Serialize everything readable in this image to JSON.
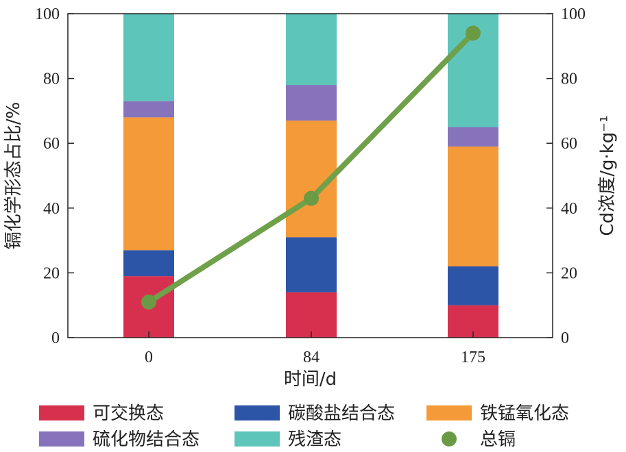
{
  "chart_data": {
    "type": "bar",
    "stacked": true,
    "categories": [
      "0",
      "84",
      "175"
    ],
    "xlabel": "时间/d",
    "ylabel_left": "镉化学形态占比/%",
    "ylabel_right": "Cd浓度/g·kg⁻¹",
    "ylim_left": [
      0,
      100
    ],
    "ylim_right": [
      0,
      100
    ],
    "yticks_left": [
      "0",
      "20",
      "40",
      "60",
      "80",
      "100"
    ],
    "yticks_right": [
      "0",
      "20",
      "40",
      "60",
      "80",
      "100"
    ],
    "series": [
      {
        "name": "可交换态",
        "color": "#d6304e",
        "values": [
          19,
          14,
          10
        ]
      },
      {
        "name": "碳酸盐结合态",
        "color": "#2c55a8",
        "values": [
          8,
          17,
          12
        ]
      },
      {
        "name": "铁锰氧化态",
        "color": "#f49a38",
        "values": [
          41,
          36,
          37
        ]
      },
      {
        "name": "硫化物结合态",
        "color": "#8773bb",
        "values": [
          5,
          11,
          6
        ]
      },
      {
        "name": "残渣态",
        "color": "#5ec5bb",
        "values": [
          27,
          22,
          35
        ]
      }
    ],
    "line_series": {
      "name": "总镉",
      "color": "#6fa04a",
      "marker_color": "#6b9a45",
      "axis": "right",
      "values": [
        11,
        43,
        94
      ]
    },
    "legend_position": "bottom"
  }
}
